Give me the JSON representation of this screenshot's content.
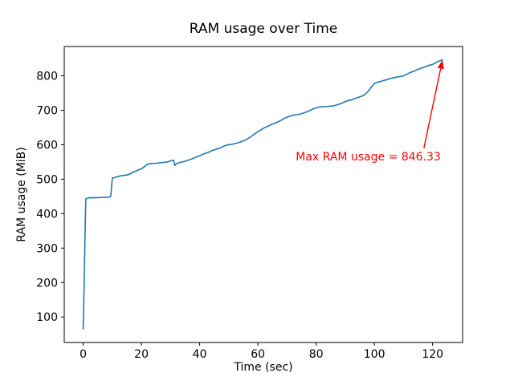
{
  "figure": {
    "background": "#ffffff"
  },
  "chart_data": {
    "type": "line",
    "title": "RAM usage over Time",
    "xlabel": "Time (sec)",
    "ylabel": "RAM usage (MiB)",
    "line_color": "#1f77b4",
    "grid": false,
    "legend": null,
    "xlim": [
      -6.5,
      130.3
    ],
    "ylim": [
      26,
      885
    ],
    "xticks": [
      0,
      20,
      40,
      60,
      80,
      100,
      120
    ],
    "yticks": [
      100,
      200,
      300,
      400,
      500,
      600,
      700,
      800
    ],
    "points": [
      [
        0,
        65
      ],
      [
        0.3,
        180
      ],
      [
        0.6,
        320
      ],
      [
        0.9,
        443
      ],
      [
        2,
        446
      ],
      [
        4,
        446
      ],
      [
        6,
        447
      ],
      [
        8,
        447
      ],
      [
        9,
        448
      ],
      [
        9.5,
        451
      ],
      [
        10,
        503
      ],
      [
        10.5,
        504
      ],
      [
        11,
        505
      ],
      [
        12,
        508
      ],
      [
        13,
        510
      ],
      [
        14,
        511
      ],
      [
        15,
        512
      ],
      [
        16,
        515
      ],
      [
        17,
        520
      ],
      [
        18,
        523
      ],
      [
        19,
        527
      ],
      [
        20,
        530
      ],
      [
        21,
        536
      ],
      [
        22,
        543
      ],
      [
        23,
        545
      ],
      [
        24,
        546
      ],
      [
        25,
        546
      ],
      [
        26,
        547
      ],
      [
        27,
        548
      ],
      [
        28,
        549
      ],
      [
        29,
        550
      ],
      [
        30,
        553
      ],
      [
        31,
        555
      ],
      [
        31.5,
        540
      ],
      [
        32,
        545
      ],
      [
        33,
        548
      ],
      [
        34,
        550
      ],
      [
        35,
        552
      ],
      [
        36,
        555
      ],
      [
        37,
        558
      ],
      [
        38,
        561
      ],
      [
        39,
        565
      ],
      [
        40,
        568
      ],
      [
        41,
        572
      ],
      [
        42,
        575
      ],
      [
        43,
        578
      ],
      [
        44,
        582
      ],
      [
        45,
        585
      ],
      [
        46,
        588
      ],
      [
        47,
        590
      ],
      [
        48,
        595
      ],
      [
        49,
        598
      ],
      [
        50,
        600
      ],
      [
        51,
        601
      ],
      [
        52,
        603
      ],
      [
        53,
        605
      ],
      [
        54,
        608
      ],
      [
        55,
        611
      ],
      [
        56,
        615
      ],
      [
        57,
        620
      ],
      [
        58,
        626
      ],
      [
        59,
        632
      ],
      [
        60,
        638
      ],
      [
        61,
        643
      ],
      [
        62,
        648
      ],
      [
        63,
        652
      ],
      [
        64,
        656
      ],
      [
        65,
        660
      ],
      [
        66,
        663
      ],
      [
        67,
        667
      ],
      [
        68,
        671
      ],
      [
        69,
        676
      ],
      [
        70,
        680
      ],
      [
        71,
        683
      ],
      [
        72,
        685
      ],
      [
        73,
        687
      ],
      [
        74,
        688
      ],
      [
        75,
        690
      ],
      [
        76,
        693
      ],
      [
        77,
        696
      ],
      [
        78,
        700
      ],
      [
        79,
        704
      ],
      [
        80,
        707
      ],
      [
        81,
        709
      ],
      [
        82,
        710
      ],
      [
        83,
        711
      ],
      [
        84,
        711
      ],
      [
        85,
        712
      ],
      [
        86,
        713
      ],
      [
        87,
        715
      ],
      [
        88,
        718
      ],
      [
        89,
        721
      ],
      [
        90,
        725
      ],
      [
        91,
        728
      ],
      [
        92,
        730
      ],
      [
        93,
        733
      ],
      [
        94,
        736
      ],
      [
        95,
        739
      ],
      [
        96,
        742
      ],
      [
        97,
        748
      ],
      [
        98,
        756
      ],
      [
        99,
        768
      ],
      [
        100,
        778
      ],
      [
        101,
        781
      ],
      [
        102,
        783
      ],
      [
        103,
        786
      ],
      [
        104,
        788
      ],
      [
        105,
        791
      ],
      [
        106,
        793
      ],
      [
        107,
        795
      ],
      [
        108,
        797
      ],
      [
        109,
        798
      ],
      [
        110,
        800
      ],
      [
        111,
        804
      ],
      [
        112,
        808
      ],
      [
        113,
        812
      ],
      [
        114,
        815
      ],
      [
        115,
        819
      ],
      [
        116,
        822
      ],
      [
        117,
        825
      ],
      [
        118,
        828
      ],
      [
        119,
        831
      ],
      [
        120,
        833
      ],
      [
        121,
        838
      ],
      [
        122,
        842
      ],
      [
        123,
        845
      ],
      [
        123.4,
        846.33
      ]
    ],
    "annotation": {
      "text": "Max RAM usage = 846.33",
      "color": "#ff0000",
      "point": [
        123.4,
        846.33
      ],
      "text_pos": [
        73,
        554
      ],
      "arrow_tail": [
        117,
        590
      ]
    }
  }
}
